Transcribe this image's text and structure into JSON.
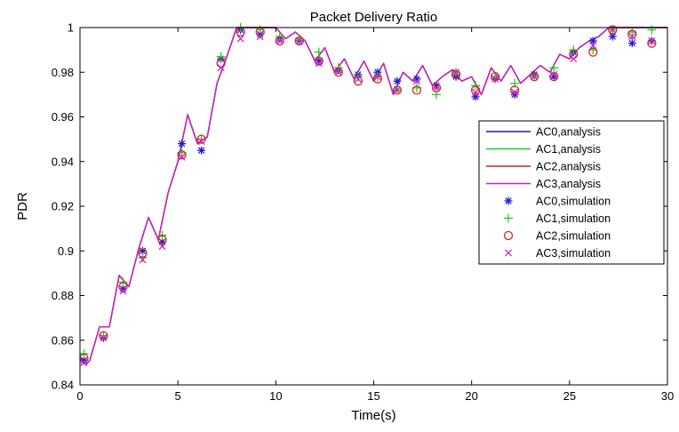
{
  "chart_data": {
    "type": "line",
    "title": "Packet Delivery Ratio",
    "xlabel": "Time(s)",
    "ylabel": "PDR",
    "xlim": [
      0,
      30
    ],
    "ylim": [
      0.84,
      1.0
    ],
    "xticks": [
      "0",
      "5",
      "10",
      "15",
      "20",
      "25",
      "30"
    ],
    "yticks": [
      "0.84",
      "0.86",
      "0.88",
      "0.9",
      "0.92",
      "0.94",
      "0.96",
      "0.98",
      "1"
    ],
    "grid": false,
    "legend": "right",
    "series": [
      {
        "name": "AC0,analysis",
        "style": "line",
        "color": "#1f1f9e",
        "x": [
          0,
          0.3,
          0.5,
          1,
          1.5,
          2,
          2.5,
          3,
          3.5,
          4,
          4.5,
          5,
          5.5,
          6,
          6.5,
          7,
          7.5,
          8,
          8.5,
          9,
          9.5,
          10,
          10.5,
          11,
          11.5,
          12,
          12.5,
          13,
          13.5,
          14,
          14.5,
          15,
          15.5,
          16,
          16.5,
          17,
          17.5,
          18,
          18.5,
          19,
          19.5,
          20,
          20.5,
          21,
          21.5,
          22,
          22.5,
          23,
          23.5,
          24,
          24.5,
          25,
          25.5,
          26,
          26.5,
          27,
          27.5,
          28,
          28.5,
          29,
          29.5,
          30
        ],
        "y": [
          0.852,
          0.849,
          0.851,
          0.866,
          0.866,
          0.889,
          0.884,
          0.901,
          0.915,
          0.905,
          0.926,
          0.94,
          0.961,
          0.948,
          0.951,
          0.975,
          0.987,
          1.0,
          1.0,
          1.0,
          1.0,
          1.0,
          0.995,
          0.998,
          0.994,
          0.985,
          0.991,
          0.98,
          0.986,
          0.977,
          0.985,
          0.976,
          0.984,
          0.97,
          0.98,
          0.976,
          0.983,
          0.974,
          0.978,
          0.981,
          0.976,
          0.978,
          0.97,
          0.982,
          0.976,
          0.983,
          0.975,
          0.979,
          0.983,
          0.98,
          0.988,
          0.986,
          0.991,
          0.994,
          0.996,
          1.0,
          1.0,
          1.0,
          1.0,
          1.0,
          1.0,
          1.0
        ]
      },
      {
        "name": "AC1,analysis",
        "style": "line",
        "color": "#22cc22",
        "x": [
          0,
          0.3,
          0.5,
          1,
          1.5,
          2,
          2.5,
          3,
          3.5,
          4,
          4.5,
          5,
          5.5,
          6,
          6.5,
          7,
          7.5,
          8,
          8.5,
          9,
          9.5,
          10,
          10.5,
          11,
          11.5,
          12,
          12.5,
          13,
          13.5,
          14,
          14.5,
          15,
          15.5,
          16,
          16.5,
          17,
          17.5,
          18,
          18.5,
          19,
          19.5,
          20,
          20.5,
          21,
          21.5,
          22,
          22.5,
          23,
          23.5,
          24,
          24.5,
          25,
          25.5,
          26,
          26.5,
          27,
          27.5,
          28,
          28.5,
          29,
          29.5,
          30
        ],
        "y": [
          0.852,
          0.849,
          0.851,
          0.866,
          0.866,
          0.889,
          0.884,
          0.901,
          0.915,
          0.905,
          0.926,
          0.94,
          0.961,
          0.948,
          0.951,
          0.975,
          0.987,
          1.0,
          1.0,
          1.0,
          1.0,
          1.0,
          0.995,
          0.998,
          0.994,
          0.985,
          0.991,
          0.98,
          0.986,
          0.977,
          0.985,
          0.976,
          0.984,
          0.97,
          0.98,
          0.976,
          0.983,
          0.974,
          0.978,
          0.981,
          0.976,
          0.978,
          0.97,
          0.982,
          0.976,
          0.983,
          0.975,
          0.979,
          0.983,
          0.98,
          0.988,
          0.986,
          0.991,
          0.994,
          0.996,
          1.0,
          1.0,
          1.0,
          1.0,
          1.0,
          1.0,
          1.0
        ]
      },
      {
        "name": "AC2,analysis",
        "style": "line",
        "color": "#cc2222",
        "x": [
          0,
          0.3,
          0.5,
          1,
          1.5,
          2,
          2.5,
          3,
          3.5,
          4,
          4.5,
          5,
          5.5,
          6,
          6.5,
          7,
          7.5,
          8,
          8.5,
          9,
          9.5,
          10,
          10.5,
          11,
          11.5,
          12,
          12.5,
          13,
          13.5,
          14,
          14.5,
          15,
          15.5,
          16,
          16.5,
          17,
          17.5,
          18,
          18.5,
          19,
          19.5,
          20,
          20.5,
          21,
          21.5,
          22,
          22.5,
          23,
          23.5,
          24,
          24.5,
          25,
          25.5,
          26,
          26.5,
          27,
          27.5,
          28,
          28.5,
          29,
          29.5,
          30
        ],
        "y": [
          0.852,
          0.849,
          0.851,
          0.866,
          0.866,
          0.889,
          0.884,
          0.901,
          0.915,
          0.905,
          0.926,
          0.94,
          0.961,
          0.948,
          0.951,
          0.975,
          0.987,
          1.0,
          1.0,
          1.0,
          1.0,
          1.0,
          0.995,
          0.998,
          0.994,
          0.985,
          0.991,
          0.98,
          0.986,
          0.977,
          0.985,
          0.976,
          0.984,
          0.97,
          0.98,
          0.976,
          0.983,
          0.974,
          0.978,
          0.981,
          0.976,
          0.978,
          0.97,
          0.982,
          0.976,
          0.983,
          0.975,
          0.979,
          0.983,
          0.98,
          0.988,
          0.986,
          0.991,
          0.994,
          0.996,
          1.0,
          1.0,
          1.0,
          1.0,
          1.0,
          1.0,
          1.0
        ]
      },
      {
        "name": "AC3,analysis",
        "style": "line",
        "color": "#cc22cc",
        "x": [
          0,
          0.3,
          0.5,
          1,
          1.5,
          2,
          2.5,
          3,
          3.5,
          4,
          4.5,
          5,
          5.5,
          6,
          6.5,
          7,
          7.5,
          8,
          8.5,
          9,
          9.5,
          10,
          10.5,
          11,
          11.5,
          12,
          12.5,
          13,
          13.5,
          14,
          14.5,
          15,
          15.5,
          16,
          16.5,
          17,
          17.5,
          18,
          18.5,
          19,
          19.5,
          20,
          20.5,
          21,
          21.5,
          22,
          22.5,
          23,
          23.5,
          24,
          24.5,
          25,
          25.5,
          26,
          26.5,
          27,
          27.5,
          28,
          28.5,
          29,
          29.5,
          30
        ],
        "y": [
          0.852,
          0.849,
          0.851,
          0.866,
          0.866,
          0.889,
          0.884,
          0.901,
          0.915,
          0.905,
          0.926,
          0.94,
          0.961,
          0.948,
          0.951,
          0.975,
          0.987,
          1.0,
          1.0,
          1.0,
          1.0,
          1.0,
          0.995,
          0.998,
          0.994,
          0.985,
          0.991,
          0.98,
          0.986,
          0.977,
          0.985,
          0.976,
          0.984,
          0.97,
          0.98,
          0.976,
          0.983,
          0.974,
          0.978,
          0.981,
          0.976,
          0.978,
          0.97,
          0.982,
          0.976,
          0.983,
          0.975,
          0.979,
          0.983,
          0.98,
          0.988,
          0.986,
          0.991,
          0.994,
          0.996,
          1.0,
          1.0,
          1.0,
          1.0,
          1.0,
          1.0,
          1.0
        ]
      },
      {
        "name": "AC0,simulation",
        "style": "marker",
        "marker": "asterisk",
        "color": "#1f1fcc",
        "x": [
          0.2,
          1.2,
          2.2,
          3.2,
          4.2,
          5.2,
          6.2,
          7.2,
          8.2,
          9.2,
          10.2,
          11.2,
          12.2,
          13.2,
          14.2,
          15.2,
          16.2,
          17.2,
          18.2,
          19.2,
          20.2,
          21.2,
          22.2,
          23.2,
          24.2,
          25.2,
          26.2,
          27.2,
          28.2,
          29.2
        ],
        "y": [
          0.851,
          0.861,
          0.883,
          0.9,
          0.904,
          0.948,
          0.945,
          0.986,
          0.999,
          0.997,
          0.995,
          0.994,
          0.985,
          0.981,
          0.979,
          0.98,
          0.976,
          0.977,
          0.974,
          0.978,
          0.969,
          0.977,
          0.97,
          0.979,
          0.978,
          0.989,
          0.994,
          0.996,
          0.993,
          0.994
        ]
      },
      {
        "name": "AC1,simulation",
        "style": "marker",
        "marker": "plus",
        "color": "#22cc22",
        "x": [
          0.2,
          1.2,
          2.2,
          3.2,
          4.2,
          5.2,
          6.2,
          7.2,
          8.2,
          9.2,
          10.2,
          11.2,
          12.2,
          13.2,
          14.2,
          15.2,
          16.2,
          17.2,
          18.2,
          19.2,
          20.2,
          21.2,
          22.2,
          23.2,
          24.2,
          25.2,
          26.2,
          27.2,
          28.2,
          29.2
        ],
        "y": [
          0.854,
          0.862,
          0.886,
          0.897,
          0.907,
          0.944,
          0.95,
          0.987,
          1.0,
          0.999,
          0.996,
          0.995,
          0.989,
          0.982,
          0.978,
          0.978,
          0.972,
          0.973,
          0.97,
          0.98,
          0.974,
          0.978,
          0.975,
          0.978,
          0.982,
          0.99,
          0.99,
          0.999,
          0.998,
          0.999
        ]
      },
      {
        "name": "AC2,simulation",
        "style": "marker",
        "marker": "circle",
        "color": "#dd2222",
        "x": [
          0.2,
          1.2,
          2.2,
          3.2,
          4.2,
          5.2,
          6.2,
          7.2,
          8.2,
          9.2,
          10.2,
          11.2,
          12.2,
          13.2,
          14.2,
          15.2,
          16.2,
          17.2,
          18.2,
          19.2,
          20.2,
          21.2,
          22.2,
          23.2,
          24.2,
          25.2,
          26.2,
          27.2,
          28.2,
          29.2
        ],
        "y": [
          0.852,
          0.862,
          0.884,
          0.899,
          0.905,
          0.943,
          0.95,
          0.984,
          0.998,
          0.998,
          0.994,
          0.994,
          0.985,
          0.98,
          0.976,
          0.977,
          0.972,
          0.972,
          0.973,
          0.979,
          0.972,
          0.978,
          0.972,
          0.978,
          0.978,
          0.988,
          0.989,
          0.999,
          0.997,
          0.993
        ]
      },
      {
        "name": "AC3,simulation",
        "style": "marker",
        "marker": "cross",
        "color": "#cc22cc",
        "x": [
          0.2,
          1.2,
          2.2,
          3.2,
          4.2,
          5.2,
          6.2,
          7.2,
          8.2,
          9.2,
          10.2,
          11.2,
          12.2,
          13.2,
          14.2,
          15.2,
          16.2,
          17.2,
          18.2,
          19.2,
          20.2,
          21.2,
          22.2,
          23.2,
          24.2,
          25.2,
          26.2,
          27.2,
          28.2,
          29.2
        ],
        "y": [
          0.85,
          0.861,
          0.882,
          0.896,
          0.902,
          0.942,
          0.949,
          0.982,
          0.995,
          0.996,
          0.994,
          0.994,
          0.984,
          0.98,
          0.977,
          0.978,
          0.972,
          0.976,
          0.973,
          0.98,
          0.971,
          0.977,
          0.971,
          0.978,
          0.979,
          0.986,
          0.992,
          0.999,
          0.996,
          0.994
        ]
      }
    ]
  }
}
